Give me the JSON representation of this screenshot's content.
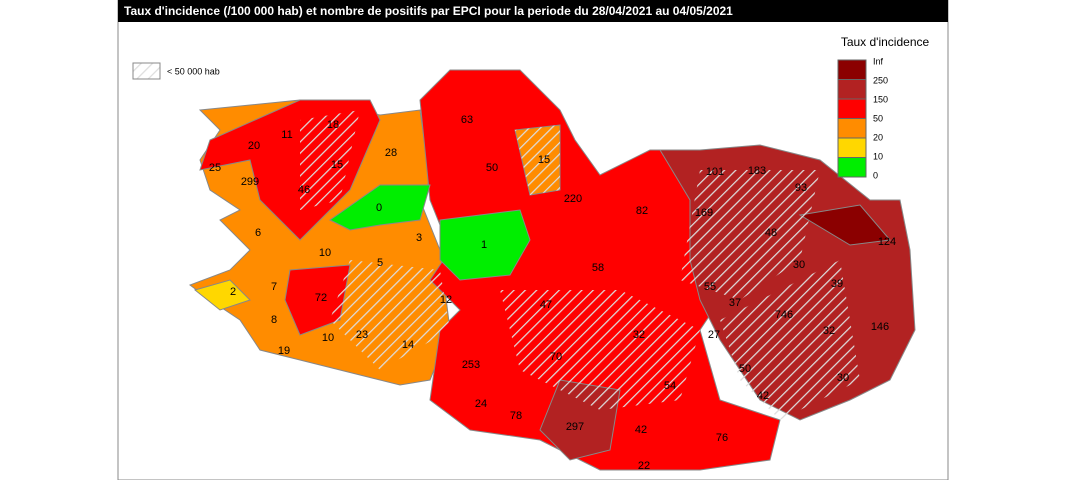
{
  "title": "Taux d'incidence (/100 000 hab) et nombre de positifs par EPCI pour la periode du 28/04/2021 au 04/05/2021",
  "legend": {
    "title": "Taux d'incidence",
    "colors": [
      "#8b0000",
      "#b22222",
      "#ff0000",
      "#ff8c00",
      "#ffd700",
      "#00ee00"
    ],
    "labels": [
      "Inf",
      "250",
      "150",
      "50",
      "20",
      "10",
      "0"
    ],
    "hatch_label": "< 50 000 hab"
  },
  "map": {
    "labels": [
      "63",
      "18",
      "11",
      "20",
      "15",
      "28",
      "50",
      "15",
      "25",
      "299",
      "46",
      "183",
      "93",
      "101",
      "0",
      "220",
      "82",
      "169",
      "6",
      "3",
      "1",
      "48",
      "124",
      "10",
      "5",
      "58",
      "30",
      "2",
      "7",
      "12",
      "55",
      "39",
      "72",
      "47",
      "37",
      "8",
      "746",
      "146",
      "32",
      "23",
      "10",
      "14",
      "32",
      "27",
      "19",
      "70",
      "50",
      "253",
      "30",
      "54",
      "42",
      "24",
      "78",
      "297",
      "42",
      "76",
      "22"
    ]
  }
}
